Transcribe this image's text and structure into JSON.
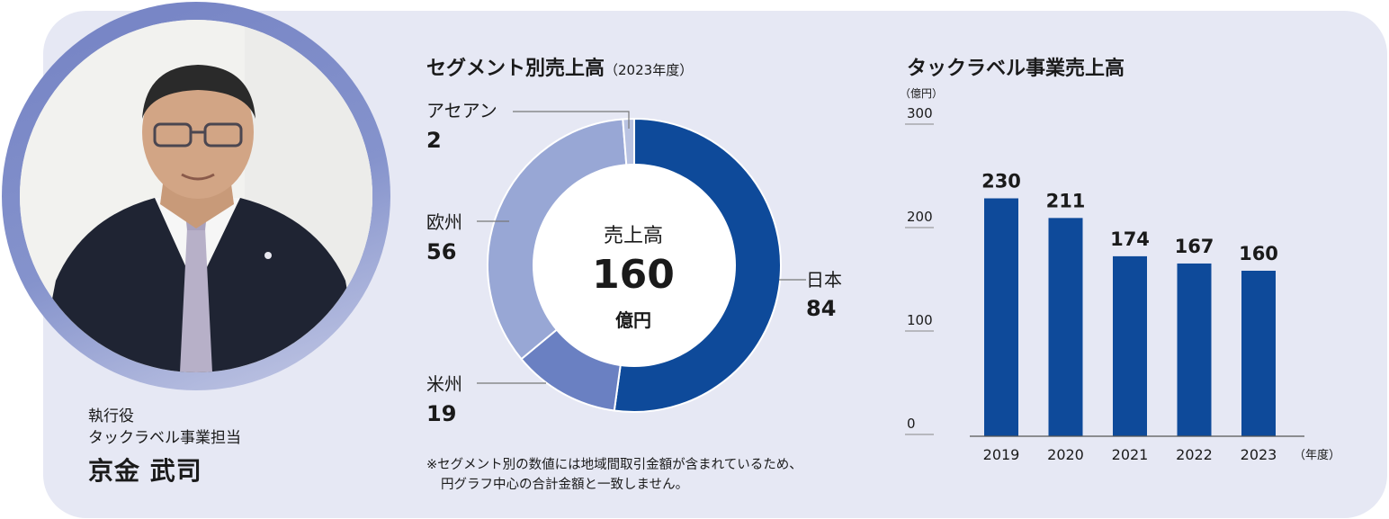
{
  "person": {
    "role_line1": "執行役",
    "role_line2": "タックラベル事業担当",
    "name": "京金 武司"
  },
  "donut": {
    "title": "セグメント別売上高",
    "subtitle": "（2023年度）",
    "center_label": "売上高",
    "center_value": "160",
    "center_unit": "億円"
  },
  "bars": {
    "title": "タックラベル事業売上高",
    "unit": "（億円）",
    "x_unit": "（年度）"
  },
  "note": {
    "line1": "※セグメント別の数値には地域間取引金額が含まれているため、",
    "line2": "円グラフ中心の合計金額と一致しません。"
  },
  "colors": {
    "japan": "#0e4a9a",
    "americas": "#6a80c2",
    "europe": "#98a7d5",
    "asean": "#b9c3e2",
    "bar": "#0e4a9a"
  },
  "chart_data": [
    {
      "type": "pie",
      "title": "セグメント別売上高",
      "segments": [
        {
          "label": "日本",
          "value": 84
        },
        {
          "label": "米州",
          "value": 19
        },
        {
          "label": "欧州",
          "value": 56
        },
        {
          "label": "アセアン",
          "value": 2
        }
      ]
    },
    {
      "type": "bar",
      "title": "タックラベル事業売上高",
      "categories": [
        "2019",
        "2020",
        "2021",
        "2022",
        "2023"
      ],
      "values": [
        230,
        211,
        174,
        167,
        160
      ],
      "yticks": [
        "0",
        "100",
        "200",
        "300"
      ],
      "ylim": [
        0,
        300
      ]
    }
  ]
}
